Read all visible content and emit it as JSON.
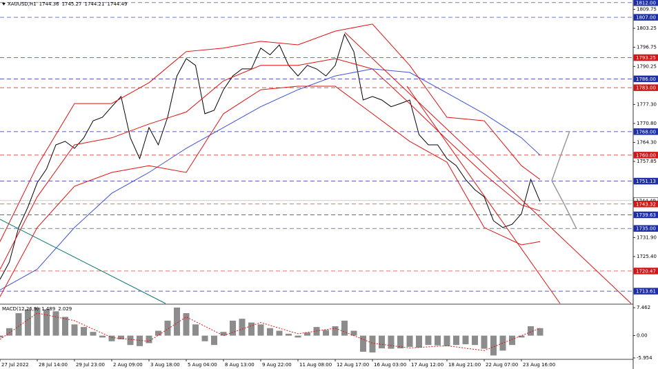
{
  "chart_data": [
    {
      "type": "line",
      "title": "XAUUSD,H1",
      "ohlc": [
        1744.36,
        1745.27,
        1744.21,
        1744.49
      ],
      "xlim": [
        0,
        17
      ],
      "ylim": [
        1709.4,
        1812.9
      ],
      "yticks": [
        {
          "value": 1809.75,
          "label": "1809.75"
        },
        {
          "value": 1803.25,
          "label": "1803.25"
        },
        {
          "value": 1796.75,
          "label": "1796.75"
        },
        {
          "value": 1790.25,
          "label": "1790.25"
        },
        {
          "value": 1777.3,
          "label": "1777.30"
        },
        {
          "value": 1770.8,
          "label": "1770.80"
        },
        {
          "value": 1764.3,
          "label": "1764.30"
        },
        {
          "value": 1757.85,
          "label": "1757.85"
        },
        {
          "value": 1731.9,
          "label": "1731.90"
        },
        {
          "value": 1725.4,
          "label": "1725.40"
        }
      ],
      "xticks": [
        {
          "value": 0,
          "label": "27 Jul 2022"
        },
        {
          "value": 1,
          "label": "28 Jul 14:00"
        },
        {
          "value": 2,
          "label": "29 Jul 23:00"
        },
        {
          "value": 3,
          "label": "2 Aug 09:00"
        },
        {
          "value": 4,
          "label": "3 Aug 18:00"
        },
        {
          "value": 5,
          "label": "5 Aug 04:00"
        },
        {
          "value": 6,
          "label": "8 Aug 13:00"
        },
        {
          "value": 7,
          "label": "9 Aug 22:00"
        },
        {
          "value": 8,
          "label": "11 Aug 08:00"
        },
        {
          "value": 9,
          "label": "12 Aug 17:00"
        },
        {
          "value": 10,
          "label": "16 Aug 03:00"
        },
        {
          "value": 11,
          "label": "17 Aug 12:00"
        },
        {
          "value": 12,
          "label": "18 Aug 21:00"
        },
        {
          "value": 13,
          "label": "22 Aug 07:00"
        },
        {
          "value": 14,
          "label": "23 Aug 16:00"
        }
      ],
      "levels": [
        {
          "value": 1812.0,
          "label": "1812.00",
          "color": "#1c2fa8"
        },
        {
          "value": 1807.0,
          "label": "1807.00",
          "color": "#1c2fa8"
        },
        {
          "value": 1793.25,
          "label": "1793.25",
          "color": "#d01818"
        },
        {
          "value": 1786.0,
          "label": "1786.00",
          "color": "#1c2fa8"
        },
        {
          "value": 1783.0,
          "label": "1783.00",
          "color": "#d01818"
        },
        {
          "value": 1768.0,
          "label": "1768.00",
          "color": "#1c2fa8"
        },
        {
          "value": 1760.0,
          "label": "1760.00",
          "color": "#d01818"
        },
        {
          "value": 1751.13,
          "label": "1751.13",
          "color": "#1c2fa8"
        },
        {
          "value": 1744.49,
          "label": "1744.49",
          "color": "#ffffff"
        },
        {
          "value": 1743.32,
          "label": "1743.32",
          "color": "#d01818"
        },
        {
          "value": 1739.63,
          "label": "1739.63",
          "color": "#1c2fa8"
        },
        {
          "value": 1735.0,
          "label": "1735.00",
          "color": "#1c2fa8"
        },
        {
          "value": 1720.47,
          "label": "1720.47",
          "color": "#d01818"
        },
        {
          "value": 1713.61,
          "label": "1713.61",
          "color": "#1c2fa8"
        }
      ],
      "series": [
        {
          "color": "#000000",
          "x": [
            0,
            0.25,
            0.5,
            0.75,
            1,
            1.25,
            1.5,
            1.75,
            2,
            2.25,
            2.5,
            2.75,
            3,
            3.25,
            3.5,
            3.75,
            4,
            4.25,
            4.5,
            4.75,
            5,
            5.25,
            5.5,
            5.75,
            6,
            6.25,
            6.5,
            6.75,
            7,
            7.25,
            7.5,
            7.75,
            8,
            8.25,
            8.5,
            8.75,
            9,
            9.25,
            9.5,
            9.75,
            10,
            10.25,
            10.5,
            10.75,
            11,
            11.25,
            11.5,
            11.75,
            12,
            12.25,
            12.5,
            12.75,
            13,
            13.25,
            13.5,
            13.75,
            14,
            14.25,
            14.5
          ],
          "values": [
            1717.6,
            1723.5,
            1735.3,
            1742.3,
            1750.6,
            1755.3,
            1763.5,
            1764.7,
            1762.3,
            1765.9,
            1771.7,
            1772.9,
            1776.5,
            1780,
            1765.9,
            1758.8,
            1769.4,
            1763.5,
            1772.9,
            1787,
            1792.9,
            1790.6,
            1774.1,
            1775.3,
            1782.3,
            1787,
            1789.4,
            1789.4,
            1796.5,
            1794.2,
            1797.6,
            1790.6,
            1787,
            1790.6,
            1789.4,
            1787,
            1790.6,
            1801.2,
            1795.3,
            1778.8,
            1780,
            1778.8,
            1776.5,
            1777.6,
            1778.8,
            1767,
            1763.5,
            1763.5,
            1758.8,
            1756.4,
            1751.7,
            1748.2,
            1745.8,
            1737.6,
            1735.3,
            1736.4,
            1740,
            1751.7,
            1744.2
          ]
        },
        {
          "color": "#3f51d8",
          "x": [
            0,
            1,
            2,
            3,
            4,
            5,
            6,
            7,
            8,
            9,
            10,
            11,
            12,
            13,
            14,
            14.5
          ],
          "values": [
            1714,
            1721.1,
            1735.3,
            1747,
            1754.1,
            1762.3,
            1769.4,
            1776.5,
            1782.3,
            1787,
            1789.4,
            1788.2,
            1781.2,
            1774.1,
            1765.9,
            1760
          ]
        },
        {
          "color": "#e01010",
          "x": [
            0,
            1,
            2,
            3,
            4,
            5,
            6,
            7,
            8,
            9,
            10,
            11,
            12,
            13,
            14,
            14.5
          ],
          "values": [
            1730.5,
            1756.4,
            1777.6,
            1777.6,
            1784.7,
            1795.3,
            1796.5,
            1798.8,
            1797.6,
            1802.3,
            1804.7,
            1790.6,
            1772.9,
            1771.7,
            1756.4,
            1751.7
          ]
        },
        {
          "color": "#e01010",
          "x": [
            0,
            1,
            2,
            3,
            4,
            5,
            6,
            7,
            8,
            9,
            10,
            11,
            12,
            13,
            14,
            14.5
          ],
          "values": [
            1721,
            1745.8,
            1763.5,
            1765.9,
            1770.6,
            1774.7,
            1785.3,
            1790.6,
            1790.6,
            1792.9,
            1789.4,
            1777.6,
            1765.3,
            1753.5,
            1743,
            1741
          ]
        },
        {
          "color": "#e01010",
          "x": [
            0,
            1,
            2,
            3,
            4,
            5,
            6,
            7,
            8,
            9,
            10,
            11,
            12,
            13,
            14,
            14.5
          ],
          "values": [
            1711.7,
            1735.3,
            1749.4,
            1754.1,
            1756.4,
            1754.1,
            1774.1,
            1782.3,
            1783.5,
            1783.5,
            1774.1,
            1764.7,
            1757.6,
            1735.3,
            1729.4,
            1730.5
          ]
        }
      ]
    },
    {
      "type": "bar",
      "title": "MACD(12,26,9)",
      "readouts": [
        1.489,
        2.029
      ],
      "xlim": [
        0,
        17
      ],
      "ylim": [
        -6.33,
        8.4
      ],
      "yticks": [
        {
          "value": 7.462,
          "label": "7.462"
        },
        {
          "value": 0,
          "label": "0.00"
        },
        {
          "value": -5.954,
          "label": "-5.954"
        }
      ],
      "series": [
        {
          "kind": "bar",
          "color": "#8c8c8c",
          "x": [
            0,
            0.25,
            0.5,
            0.75,
            1,
            1.25,
            1.5,
            1.75,
            2,
            2.25,
            2.5,
            2.75,
            3,
            3.25,
            3.5,
            3.75,
            4,
            4.25,
            4.5,
            4.75,
            5,
            5.25,
            5.5,
            5.75,
            6,
            6.25,
            6.5,
            6.75,
            7,
            7.25,
            7.5,
            7.75,
            8,
            8.25,
            8.5,
            8.75,
            9,
            9.25,
            9.5,
            9.75,
            10,
            10.25,
            10.5,
            10.75,
            11,
            11.25,
            11.5,
            11.75,
            12,
            12.25,
            12.5,
            12.75,
            13,
            13.25,
            13.5,
            13.75,
            14,
            14.25,
            14.5
          ],
          "values": [
            -0.5,
            2,
            6,
            7,
            7.5,
            7,
            6.5,
            5,
            3,
            2.3,
            1,
            -0.5,
            -1.5,
            -1,
            -2.5,
            -2.8,
            -2,
            1.3,
            4,
            7.5,
            6,
            3,
            -1.5,
            -2.5,
            1,
            4,
            4.5,
            3.5,
            3,
            2,
            1.3,
            0.5,
            -0.5,
            0.8,
            2.3,
            1.5,
            2.5,
            4,
            1.3,
            -4.3,
            -4.5,
            -3.4,
            -3.5,
            -3.4,
            -3,
            -3.2,
            -2.5,
            -2.6,
            -2.8,
            -2.5,
            -2.3,
            -2.5,
            -3.5,
            -5.3,
            -4,
            -2.5,
            -0.5,
            2.5,
            2
          ]
        },
        {
          "kind": "line",
          "color": "#e01010",
          "x": [
            0,
            1,
            2,
            3,
            4,
            5,
            6,
            7,
            8,
            9,
            10,
            11,
            12,
            13,
            14,
            14.5
          ],
          "values": [
            -1,
            6,
            4,
            -0.5,
            -1.5,
            5,
            0,
            3.5,
            0.5,
            2,
            -2,
            -3.3,
            -2.7,
            -4,
            0,
            2
          ]
        }
      ]
    }
  ]
}
